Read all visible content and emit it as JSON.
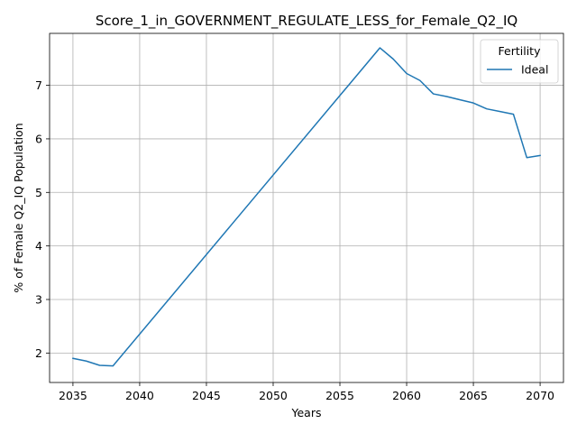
{
  "chart_data": {
    "type": "line",
    "title": "Score_1_in_GOVERNMENT_REGULATE_LESS_for_Female_Q2_IQ",
    "xlabel": "Years",
    "ylabel": "% of Female Q2_IQ Population",
    "xlim": [
      2033.25,
      2071.75
    ],
    "ylim": [
      1.45,
      7.97
    ],
    "xticks": [
      2035,
      2040,
      2045,
      2050,
      2055,
      2060,
      2065,
      2070
    ],
    "yticks": [
      2,
      3,
      4,
      5,
      6,
      7
    ],
    "grid": true,
    "legend": {
      "title": "Fertility",
      "placement": "top-right"
    },
    "series": [
      {
        "name": "Ideal",
        "color": "#1f77b4",
        "x": [
          2035,
          2036,
          2037,
          2038,
          2058,
          2059,
          2060,
          2061,
          2062,
          2063,
          2064,
          2065,
          2066,
          2067,
          2068,
          2069,
          2070
        ],
        "y": [
          1.9,
          1.85,
          1.77,
          1.76,
          7.7,
          7.49,
          7.22,
          7.09,
          6.84,
          6.79,
          6.73,
          6.67,
          6.56,
          6.51,
          6.46,
          5.65,
          5.69
        ]
      }
    ]
  }
}
